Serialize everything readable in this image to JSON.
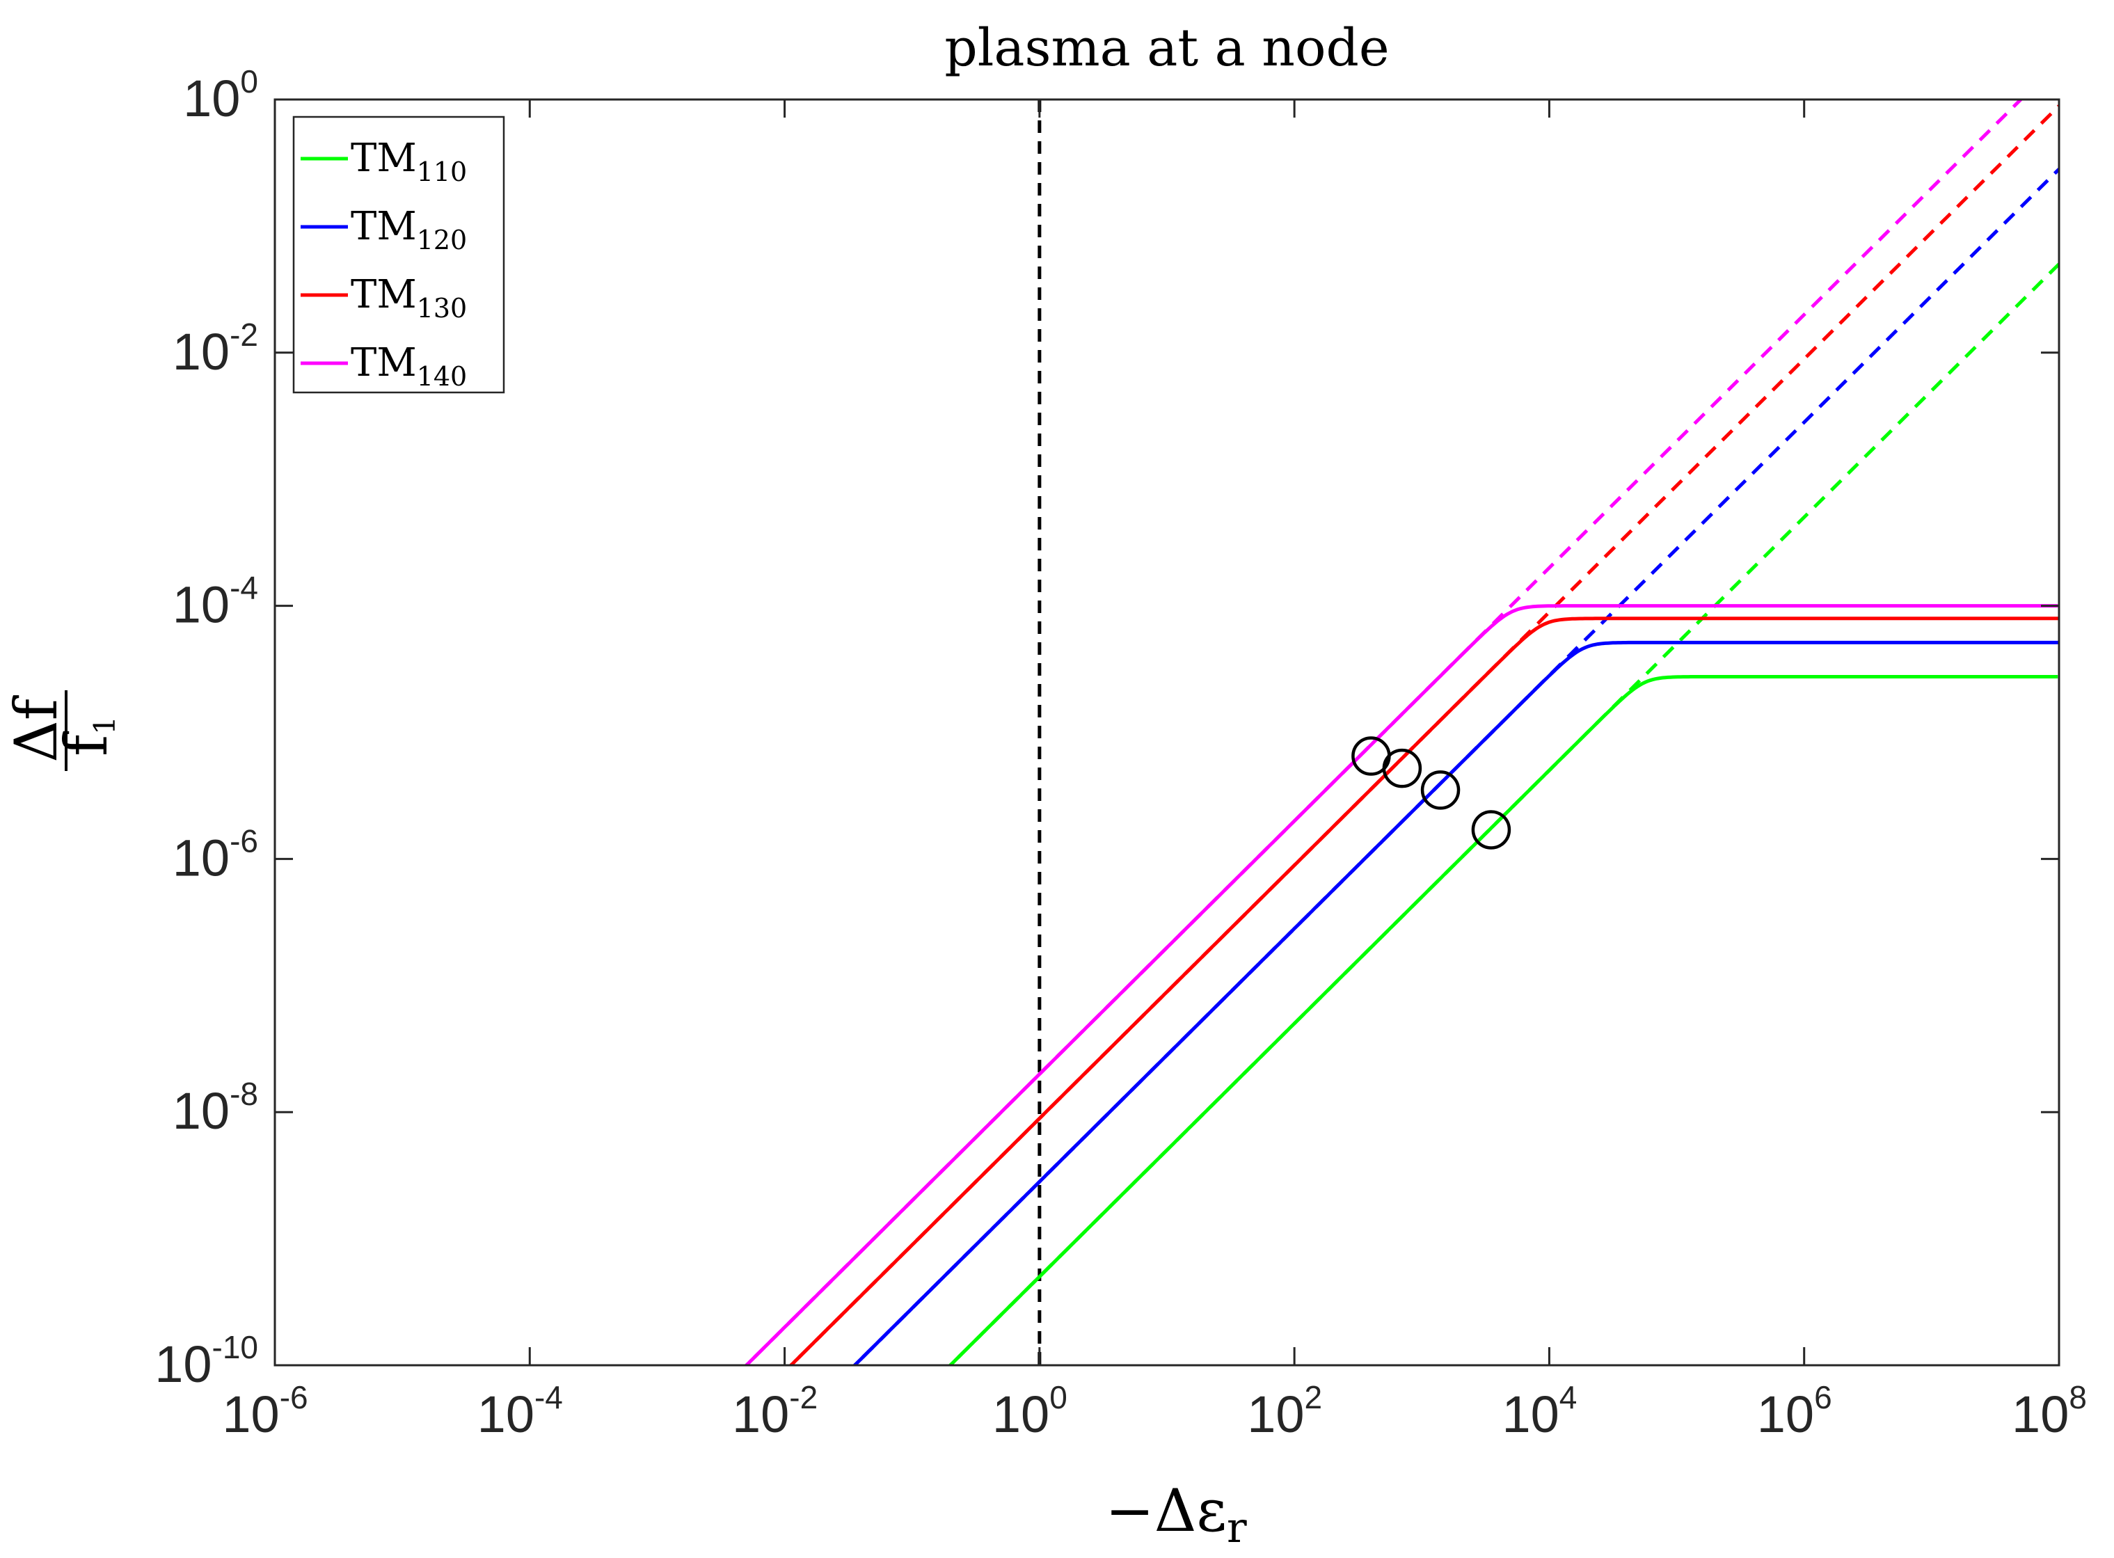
{
  "chart_data": {
    "type": "line",
    "title": "plasma at a node",
    "xlabel": "−Δε",
    "xlabel_subscript": "r",
    "ylabel_numerator": "Δf",
    "ylabel_denominator": "f",
    "ylabel_denominator_subscript": "1",
    "xscale": "log",
    "yscale": "log",
    "xlim_exp": [
      -6,
      8
    ],
    "ylim_exp": [
      -10,
      0
    ],
    "x_ticks": [
      {
        "base": "10",
        "exp": "-6"
      },
      {
        "base": "10",
        "exp": "-4"
      },
      {
        "base": "10",
        "exp": "-2"
      },
      {
        "base": "10",
        "exp": "0"
      },
      {
        "base": "10",
        "exp": "2"
      },
      {
        "base": "10",
        "exp": "4"
      },
      {
        "base": "10",
        "exp": "6"
      },
      {
        "base": "10",
        "exp": "8"
      }
    ],
    "y_ticks": [
      {
        "base": "10",
        "exp": "0"
      },
      {
        "base": "10",
        "exp": "-2"
      },
      {
        "base": "10",
        "exp": "-4"
      },
      {
        "base": "10",
        "exp": "-6"
      },
      {
        "base": "10",
        "exp": "-8"
      },
      {
        "base": "10",
        "exp": "-10"
      }
    ],
    "legend_position": "top-left",
    "reference_line_x": 1,
    "series": [
      {
        "name": "TM",
        "subscript": "110",
        "color": "#00ff00",
        "log_slope_offset": -9.3,
        "saturation_log": -4.56,
        "circle": {
          "x": 3500,
          "y": 1.7e-06
        }
      },
      {
        "name": "TM",
        "subscript": "120",
        "color": "#0000ff",
        "log_slope_offset": -8.55,
        "saturation_log": -4.29,
        "circle": {
          "x": 1400,
          "y": 3.5e-06
        }
      },
      {
        "name": "TM",
        "subscript": "130",
        "color": "#ff0000",
        "log_slope_offset": -8.05,
        "saturation_log": -4.1,
        "circle": {
          "x": 700,
          "y": 5.2e-06
        }
      },
      {
        "name": "TM",
        "subscript": "140",
        "color": "#ff00ff",
        "log_slope_offset": -7.7,
        "saturation_log": -4.0,
        "circle": {
          "x": 400,
          "y": 6.5e-06
        }
      }
    ]
  }
}
